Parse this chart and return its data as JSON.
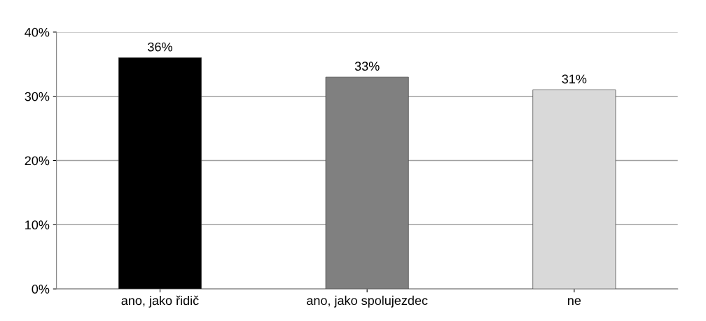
{
  "chart_data": {
    "type": "bar",
    "categories": [
      "ano, jako řidič",
      "ano, jako spolujezdec",
      "ne"
    ],
    "values": [
      36,
      33,
      31
    ],
    "colors": [
      "#000000",
      "#808080",
      "#d9d9d9"
    ],
    "value_labels": [
      "36%",
      "33%",
      "31%"
    ],
    "ylim": [
      0,
      40
    ],
    "yticks": [
      {
        "value": 0,
        "label": "0%"
      },
      {
        "value": 10,
        "label": "10%"
      },
      {
        "value": 20,
        "label": "20%"
      },
      {
        "value": 30,
        "label": "30%"
      },
      {
        "value": 40,
        "label": "40%"
      }
    ],
    "grid": "y"
  }
}
